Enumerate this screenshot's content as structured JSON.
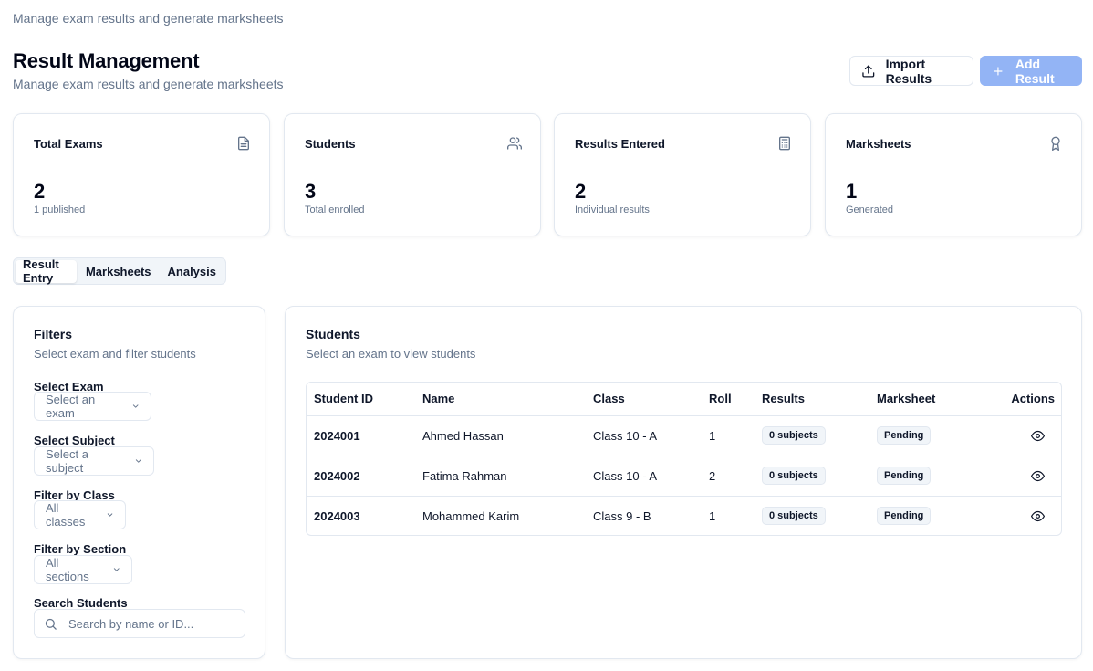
{
  "top_subtitle": "Manage exam results and generate marksheets",
  "header": {
    "title": "Result Management",
    "subtitle": "Manage exam results and generate marksheets",
    "import_label": "Import Results",
    "add_label": "Add Result"
  },
  "stats": [
    {
      "label": "Total Exams",
      "value": "2",
      "hint": "1 published",
      "icon": "file-text-icon"
    },
    {
      "label": "Students",
      "value": "3",
      "hint": "Total enrolled",
      "icon": "users-icon"
    },
    {
      "label": "Results Entered",
      "value": "2",
      "hint": "Individual results",
      "icon": "calculator-icon"
    },
    {
      "label": "Marksheets",
      "value": "1",
      "hint": "Generated",
      "icon": "award-icon"
    }
  ],
  "tabs": [
    {
      "label": "Result Entry",
      "active": true
    },
    {
      "label": "Marksheets",
      "active": false
    },
    {
      "label": "Analysis",
      "active": false
    }
  ],
  "filters": {
    "title": "Filters",
    "description": "Select exam and filter students",
    "exam": {
      "label": "Select Exam",
      "value": "Select an exam"
    },
    "subject": {
      "label": "Select Subject",
      "value": "Select a subject"
    },
    "class": {
      "label": "Filter by Class",
      "value": "All classes"
    },
    "section": {
      "label": "Filter by Section",
      "value": "All sections"
    },
    "search": {
      "label": "Search Students",
      "placeholder": "Search by name or ID..."
    }
  },
  "students": {
    "title": "Students",
    "description": "Select an exam to view students",
    "columns": [
      "Student ID",
      "Name",
      "Class",
      "Roll",
      "Results",
      "Marksheet",
      "Actions"
    ],
    "rows": [
      {
        "id": "2024001",
        "name": "Ahmed Hassan",
        "class": "Class 10 - A",
        "roll": "1",
        "results": "0 subjects",
        "marksheet": "Pending"
      },
      {
        "id": "2024002",
        "name": "Fatima Rahman",
        "class": "Class 10 - A",
        "roll": "2",
        "results": "0 subjects",
        "marksheet": "Pending"
      },
      {
        "id": "2024003",
        "name": "Mohammed Karim",
        "class": "Class 9 - B",
        "roll": "1",
        "results": "0 subjects",
        "marksheet": "Pending"
      }
    ]
  },
  "colors": {
    "primary_disabled": "#93b4f5",
    "border": "#e2e8f0",
    "muted_text": "#64748b"
  }
}
